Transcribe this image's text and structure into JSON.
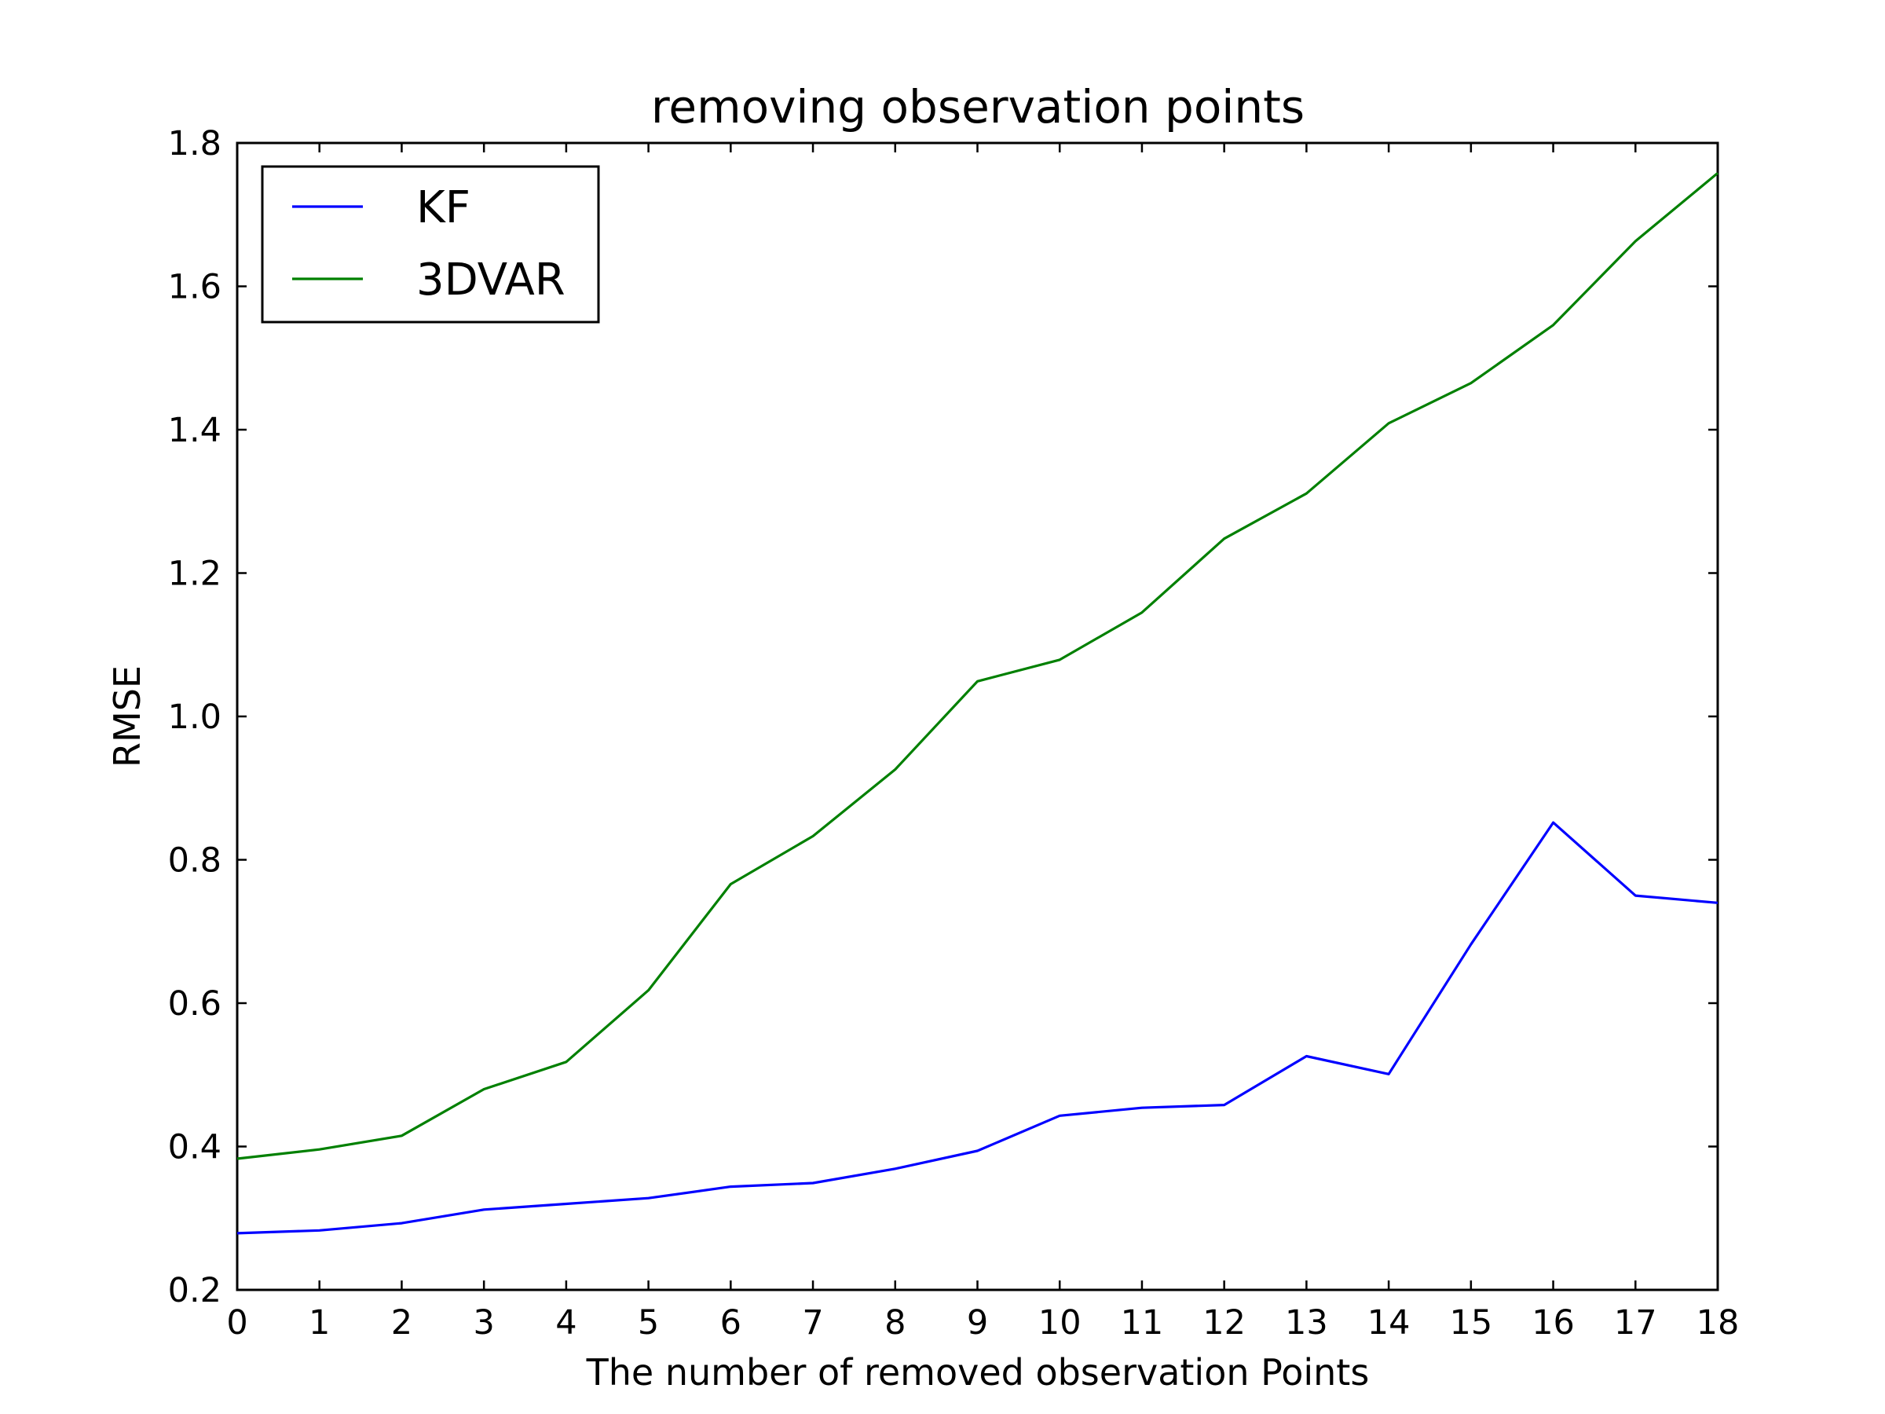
{
  "chart_data": {
    "type": "line",
    "title": "removing observation points",
    "xlabel": "The number of removed observation Points",
    "ylabel": "RMSE",
    "xlim": [
      0,
      18
    ],
    "ylim": [
      0.2,
      1.8
    ],
    "xticks": [
      0,
      1,
      2,
      3,
      4,
      5,
      6,
      7,
      8,
      9,
      10,
      11,
      12,
      13,
      14,
      15,
      16,
      17,
      18
    ],
    "yticks": [
      0.2,
      0.4,
      0.6,
      0.8,
      1.0,
      1.2,
      1.4,
      1.6,
      1.8
    ],
    "ytick_labels": [
      "0.2",
      "0.4",
      "0.6",
      "0.8",
      "1.0",
      "1.2",
      "1.4",
      "1.6",
      "1.8"
    ],
    "grid": false,
    "legend": "top-left",
    "x": [
      0,
      1,
      2,
      3,
      4,
      5,
      6,
      7,
      8,
      9,
      10,
      11,
      12,
      13,
      14,
      15,
      16,
      17,
      18
    ],
    "series": [
      {
        "name": "KF",
        "color": "#0000ff",
        "values": [
          0.279,
          0.283,
          0.293,
          0.312,
          0.32,
          0.328,
          0.344,
          0.349,
          0.369,
          0.394,
          0.443,
          0.454,
          0.458,
          0.526,
          0.501,
          0.682,
          0.852,
          0.75,
          0.74
        ]
      },
      {
        "name": "3DVAR",
        "color": "#008000",
        "values": [
          0.383,
          0.396,
          0.415,
          0.48,
          0.518,
          0.618,
          0.766,
          0.833,
          0.926,
          1.049,
          1.079,
          1.145,
          1.248,
          1.311,
          1.409,
          1.465,
          1.546,
          1.663,
          1.758
        ]
      }
    ]
  }
}
